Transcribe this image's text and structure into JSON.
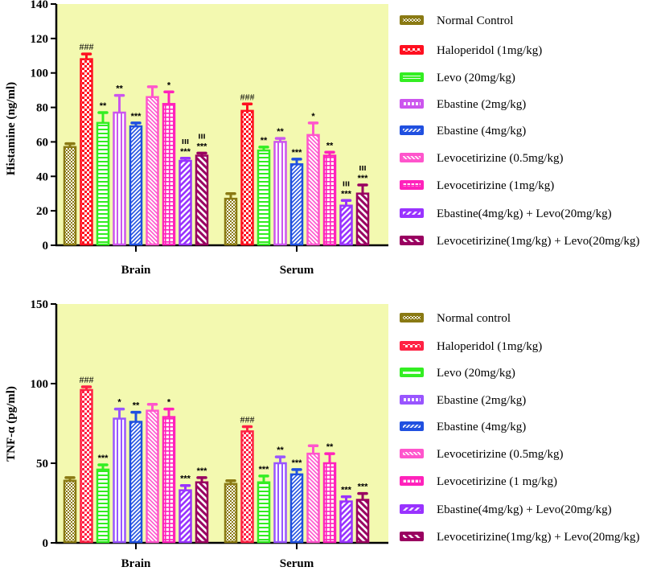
{
  "chart_data": [
    {
      "type": "bar",
      "title": "",
      "ylabel": "Histamine (ng/ml)",
      "xlabel": "",
      "ylim": [
        0,
        140
      ],
      "yticks": [
        0,
        20,
        40,
        60,
        80,
        100,
        120,
        140
      ],
      "categories": [
        "Brain",
        "Serum"
      ],
      "legend_position": "right",
      "grid": false,
      "series": [
        {
          "name": "Normal Control",
          "values": [
            57,
            27
          ],
          "errors": [
            2,
            3
          ],
          "annotations": [
            [],
            []
          ]
        },
        {
          "name": "Haloperidol (1mg/kg)",
          "values": [
            108,
            78
          ],
          "errors": [
            3,
            4
          ],
          "annotations": [
            [
              "###"
            ],
            [
              "###"
            ]
          ]
        },
        {
          "name": "Levo (20mg/kg)",
          "values": [
            71,
            55
          ],
          "errors": [
            6,
            2
          ],
          "annotations": [
            [
              "**"
            ],
            [
              "**"
            ]
          ]
        },
        {
          "name": "Ebastine (2mg/kg)",
          "values": [
            77,
            60
          ],
          "errors": [
            10,
            2
          ],
          "annotations": [
            [
              "**"
            ],
            [
              "**"
            ]
          ]
        },
        {
          "name": "Ebastine (4mg/kg)",
          "values": [
            69,
            47
          ],
          "errors": [
            2,
            3
          ],
          "annotations": [
            [
              "***"
            ],
            [
              "***"
            ]
          ]
        },
        {
          "name": "Levocetirizine (0.5mg/kg)",
          "values": [
            86,
            64
          ],
          "errors": [
            6,
            7
          ],
          "annotations": [
            [],
            [
              "*"
            ]
          ]
        },
        {
          "name": "Levocetirizine (1mg/kg)",
          "values": [
            82,
            52
          ],
          "errors": [
            7,
            2
          ],
          "annotations": [
            [
              "*"
            ],
            [
              "**"
            ]
          ]
        },
        {
          "name": "Ebastine(4mg/kg) + Levo(20mg/kg)",
          "values": [
            49,
            23
          ],
          "errors": [
            1.5,
            3
          ],
          "annotations": [
            [
              "***",
              "ııı"
            ],
            [
              "***",
              "ııı"
            ]
          ]
        },
        {
          "name": "Levocetirizine(1mg/kg) + Levo(20mg/kg)",
          "values": [
            52,
            30
          ],
          "errors": [
            1.5,
            5
          ],
          "annotations": [
            [
              "***",
              "ııı"
            ],
            [
              "***",
              "ııı"
            ]
          ]
        }
      ]
    },
    {
      "type": "bar",
      "title": "",
      "ylabel": "TNF-α (pg/ml)",
      "xlabel": "",
      "ylim": [
        0,
        150
      ],
      "yticks": [
        0,
        50,
        100,
        150
      ],
      "categories": [
        "Brain",
        "Serum"
      ],
      "legend_position": "right",
      "grid": false,
      "series": [
        {
          "name": "Normal control",
          "values": [
            39,
            37
          ],
          "errors": [
            2,
            2
          ],
          "annotations": [
            [],
            []
          ]
        },
        {
          "name": "Haloperidol (1mg/kg)",
          "values": [
            96,
            70
          ],
          "errors": [
            2,
            3
          ],
          "annotations": [
            [
              "###"
            ],
            [
              "###"
            ]
          ]
        },
        {
          "name": "Levo (20mg/kg)",
          "values": [
            46,
            38
          ],
          "errors": [
            3,
            4
          ],
          "annotations": [
            [
              "***"
            ],
            [
              "***"
            ]
          ]
        },
        {
          "name": "Ebastine (2mg/kg)",
          "values": [
            78,
            50
          ],
          "errors": [
            6,
            4
          ],
          "annotations": [
            [
              "*"
            ],
            [
              "**"
            ]
          ]
        },
        {
          "name": "Ebastine (4mg/kg)",
          "values": [
            76,
            43
          ],
          "errors": [
            6,
            3
          ],
          "annotations": [
            [
              "**"
            ],
            [
              "***"
            ]
          ]
        },
        {
          "name": "Levocetirizine (0.5mg/kg)",
          "values": [
            83,
            56
          ],
          "errors": [
            4,
            5
          ],
          "annotations": [
            [],
            []
          ]
        },
        {
          "name": "Levocetirizine (1 mg/kg)",
          "values": [
            79,
            50
          ],
          "errors": [
            5,
            6
          ],
          "annotations": [
            [
              "*"
            ],
            [
              "**"
            ]
          ]
        },
        {
          "name": "Ebastine(4mg/kg) + Levo(20mg/kg)",
          "values": [
            33,
            26
          ],
          "errors": [
            3,
            3
          ],
          "annotations": [
            [
              "***"
            ],
            [
              "***"
            ]
          ]
        },
        {
          "name": "Levocetirizine(1mg/kg) + Levo(20mg/kg)",
          "values": [
            38,
            27
          ],
          "errors": [
            3,
            4
          ],
          "annotations": [
            [
              "***"
            ],
            [
              "***"
            ]
          ]
        }
      ]
    }
  ],
  "colors": {
    "plot_background": "#F3F9B0",
    "series": [
      "#8A7A14",
      "#FF1020",
      "#33EE22",
      "#CC55EE",
      "#2050E0",
      "#FF55CC",
      "#FF22BB",
      "#9933FF",
      "#990060"
    ],
    "series_bottom": [
      "#8A7A14",
      "#FF2244",
      "#33EE22",
      "#9955FF",
      "#2050E0",
      "#FF55CC",
      "#FF22BB",
      "#9933FF",
      "#990060"
    ]
  }
}
